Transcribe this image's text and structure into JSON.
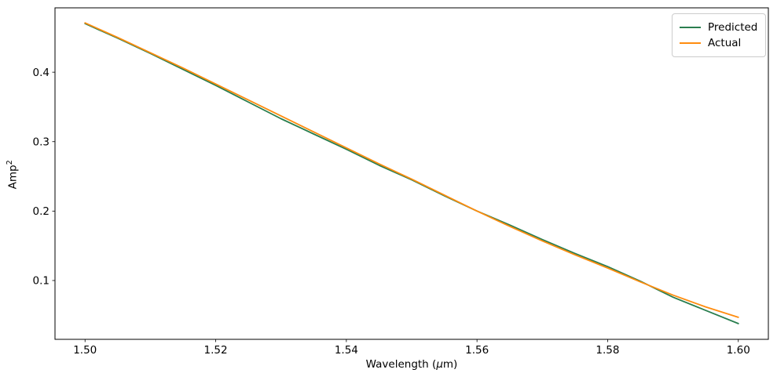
{
  "chart_data": {
    "type": "line",
    "title": "",
    "grid": false,
    "legend_position": "upper right",
    "labels": {
      "x_prefix": "Wavelength (",
      "x_mu": "μ",
      "x_suffix": "m)",
      "y_base": "Amp",
      "y_sup": "2"
    },
    "xlim": [
      1.4954,
      1.6046
    ],
    "ylim": [
      0.0153,
      0.4927
    ],
    "xticks": {
      "values": [
        1.5,
        1.52,
        1.54,
        1.56,
        1.58,
        1.6
      ],
      "labels": [
        "1.50",
        "1.52",
        "1.54",
        "1.56",
        "1.58",
        "1.60"
      ]
    },
    "yticks": {
      "values": [
        0.1,
        0.2,
        0.3,
        0.4
      ],
      "labels": [
        "0.1",
        "0.2",
        "0.3",
        "0.4"
      ]
    },
    "x": [
      1.5,
      1.505,
      1.51,
      1.515,
      1.52,
      1.525,
      1.53,
      1.535,
      1.54,
      1.545,
      1.55,
      1.555,
      1.56,
      1.565,
      1.57,
      1.575,
      1.58,
      1.585,
      1.59,
      1.595,
      1.6
    ],
    "series": [
      {
        "name": "Predicted",
        "color": "#2a7e4f",
        "values": [
          0.47,
          0.449,
          0.427,
          0.404,
          0.381,
          0.357,
          0.333,
          0.311,
          0.289,
          0.266,
          0.245,
          0.222,
          0.2,
          0.18,
          0.159,
          0.139,
          0.12,
          0.099,
          0.076,
          0.057,
          0.038
        ]
      },
      {
        "name": "Actual",
        "color": "#ff8c0e",
        "values": [
          0.471,
          0.45,
          0.428,
          0.406,
          0.383,
          0.36,
          0.337,
          0.314,
          0.291,
          0.268,
          0.246,
          0.223,
          0.2,
          0.178,
          0.157,
          0.137,
          0.118,
          0.098,
          0.079,
          0.062,
          0.047
        ]
      }
    ]
  }
}
